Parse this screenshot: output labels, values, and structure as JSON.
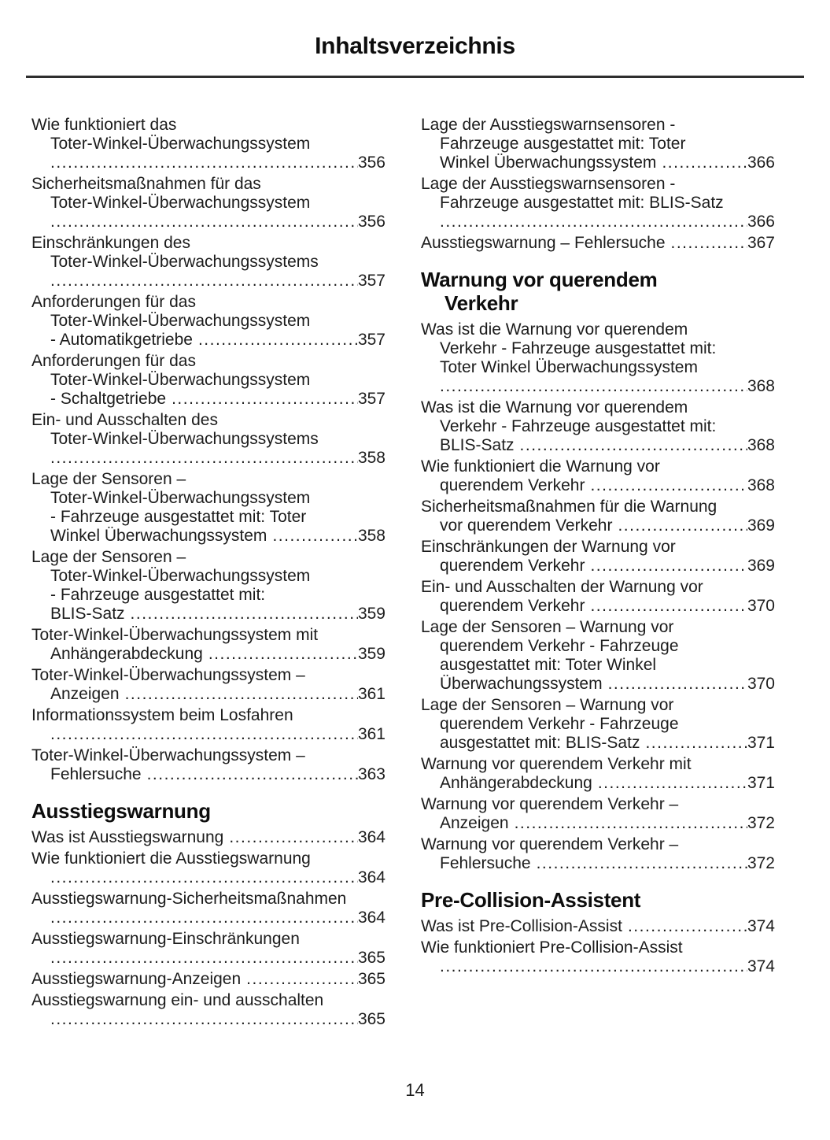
{
  "page": {
    "title": "Inhaltsverzeichnis",
    "page_number": "14",
    "ink_color": "#1c1c1c",
    "heading_color": "#0d0d0d",
    "rule_color": "#2e2e2e"
  },
  "toc": {
    "left": [
      {
        "heading": null,
        "entries": [
          {
            "lines": [
              "Wie funktioniert das",
              "Toter-Winkel-Überwachungssystem"
            ],
            "last": "",
            "page": "356"
          },
          {
            "lines": [
              "Sicherheitsmaßnahmen für das",
              "Toter-Winkel-Überwachungssystem"
            ],
            "last": "",
            "page": "356"
          },
          {
            "lines": [
              "Einschränkungen des",
              "Toter-Winkel-Überwachungssystems"
            ],
            "last": "",
            "page": "357"
          },
          {
            "lines": [
              "Anforderungen für das",
              "Toter-Winkel-Überwachungssystem"
            ],
            "last": "- Automatikgetriebe",
            "page": "357"
          },
          {
            "lines": [
              "Anforderungen für das",
              "Toter-Winkel-Überwachungssystem"
            ],
            "last": "- Schaltgetriebe",
            "page": "357"
          },
          {
            "lines": [
              "Ein- und Ausschalten des",
              "Toter-Winkel-Überwachungssystems"
            ],
            "last": "",
            "page": "358"
          },
          {
            "lines": [
              "Lage der Sensoren –",
              "Toter-Winkel-Überwachungssystem",
              "- Fahrzeuge ausgestattet mit: Toter"
            ],
            "last": "Winkel Überwachungssystem",
            "page": "358"
          },
          {
            "lines": [
              "Lage der Sensoren –",
              "Toter-Winkel-Überwachungssystem",
              "- Fahrzeuge ausgestattet mit:"
            ],
            "last": "BLIS-Satz",
            "page": "359"
          },
          {
            "lines": [
              "Toter-Winkel-Überwachungssystem mit"
            ],
            "last": "Anhängerabdeckung",
            "page": "359"
          },
          {
            "lines": [
              "Toter-Winkel-Überwachungssystem –"
            ],
            "last": "Anzeigen",
            "page": "361"
          },
          {
            "lines": [
              "Informationssystem beim Losfahren"
            ],
            "last": "",
            "page": "361"
          },
          {
            "lines": [
              "Toter-Winkel-Überwachungssystem –"
            ],
            "last": "Fehlersuche",
            "page": "363"
          }
        ]
      },
      {
        "heading": [
          "Ausstiegswarnung"
        ],
        "entries": [
          {
            "lines": [],
            "last": "Was ist Ausstiegswarnung",
            "page": "364"
          },
          {
            "lines": [
              "Wie funktioniert die Ausstiegswarnung"
            ],
            "last": "",
            "page": "364"
          },
          {
            "lines": [
              "Ausstiegswarnung-Sicherheitsmaßnahmen"
            ],
            "last": "",
            "page": "364"
          },
          {
            "lines": [
              "Ausstiegswarnung-Einschränkungen"
            ],
            "last": "",
            "page": "365"
          },
          {
            "lines": [],
            "last": "Ausstiegswarnung-Anzeigen",
            "page": "365"
          },
          {
            "lines": [
              "Ausstiegswarnung ein- und ausschalten"
            ],
            "last": "",
            "page": "365"
          }
        ]
      }
    ],
    "right": [
      {
        "heading": null,
        "entries": [
          {
            "lines": [
              "Lage der Ausstiegswarnsensoren -",
              "Fahrzeuge ausgestattet mit: Toter"
            ],
            "last": "Winkel Überwachungssystem",
            "page": "366"
          },
          {
            "lines": [
              "Lage der Ausstiegswarnsensoren -",
              "Fahrzeuge ausgestattet mit: BLIS-Satz"
            ],
            "last": "",
            "page": "366"
          },
          {
            "lines": [],
            "last": "Ausstiegswarnung – Fehlersuche",
            "page": "367"
          }
        ]
      },
      {
        "heading": [
          "Warnung vor querendem",
          "Verkehr"
        ],
        "entries": [
          {
            "lines": [
              "Was ist die Warnung vor querendem",
              "Verkehr - Fahrzeuge ausgestattet mit:",
              "Toter Winkel Überwachungssystem"
            ],
            "last": "",
            "page": "368"
          },
          {
            "lines": [
              "Was ist die Warnung vor querendem",
              "Verkehr - Fahrzeuge ausgestattet mit:"
            ],
            "last": "BLIS-Satz",
            "page": "368"
          },
          {
            "lines": [
              "Wie funktioniert die Warnung vor"
            ],
            "last": "querendem Verkehr",
            "page": "368"
          },
          {
            "lines": [
              "Sicherheitsmaßnahmen für die Warnung"
            ],
            "last": "vor querendem Verkehr",
            "page": "369"
          },
          {
            "lines": [
              "Einschränkungen der Warnung vor"
            ],
            "last": "querendem Verkehr",
            "page": "369"
          },
          {
            "lines": [
              "Ein- und Ausschalten der Warnung vor"
            ],
            "last": "querendem Verkehr",
            "page": "370"
          },
          {
            "lines": [
              "Lage der Sensoren – Warnung vor",
              "querendem Verkehr - Fahrzeuge",
              "ausgestattet mit: Toter Winkel"
            ],
            "last": "Überwachungssystem",
            "page": "370"
          },
          {
            "lines": [
              "Lage der Sensoren – Warnung vor",
              "querendem Verkehr - Fahrzeuge"
            ],
            "last": "ausgestattet mit: BLIS-Satz",
            "page": "371"
          },
          {
            "lines": [
              "Warnung vor querendem Verkehr mit"
            ],
            "last": "Anhängerabdeckung",
            "page": "371"
          },
          {
            "lines": [
              "Warnung vor querendem Verkehr –"
            ],
            "last": "Anzeigen",
            "page": "372"
          },
          {
            "lines": [
              "Warnung vor querendem Verkehr –"
            ],
            "last": "Fehlersuche",
            "page": "372"
          }
        ]
      },
      {
        "heading": [
          "Pre-Collision-Assistent"
        ],
        "entries": [
          {
            "lines": [],
            "last": "Was ist Pre-Collision-Assist",
            "page": "374"
          },
          {
            "lines": [
              "Wie funktioniert Pre-Collision-Assist"
            ],
            "last": "",
            "page": "374"
          }
        ]
      }
    ]
  }
}
